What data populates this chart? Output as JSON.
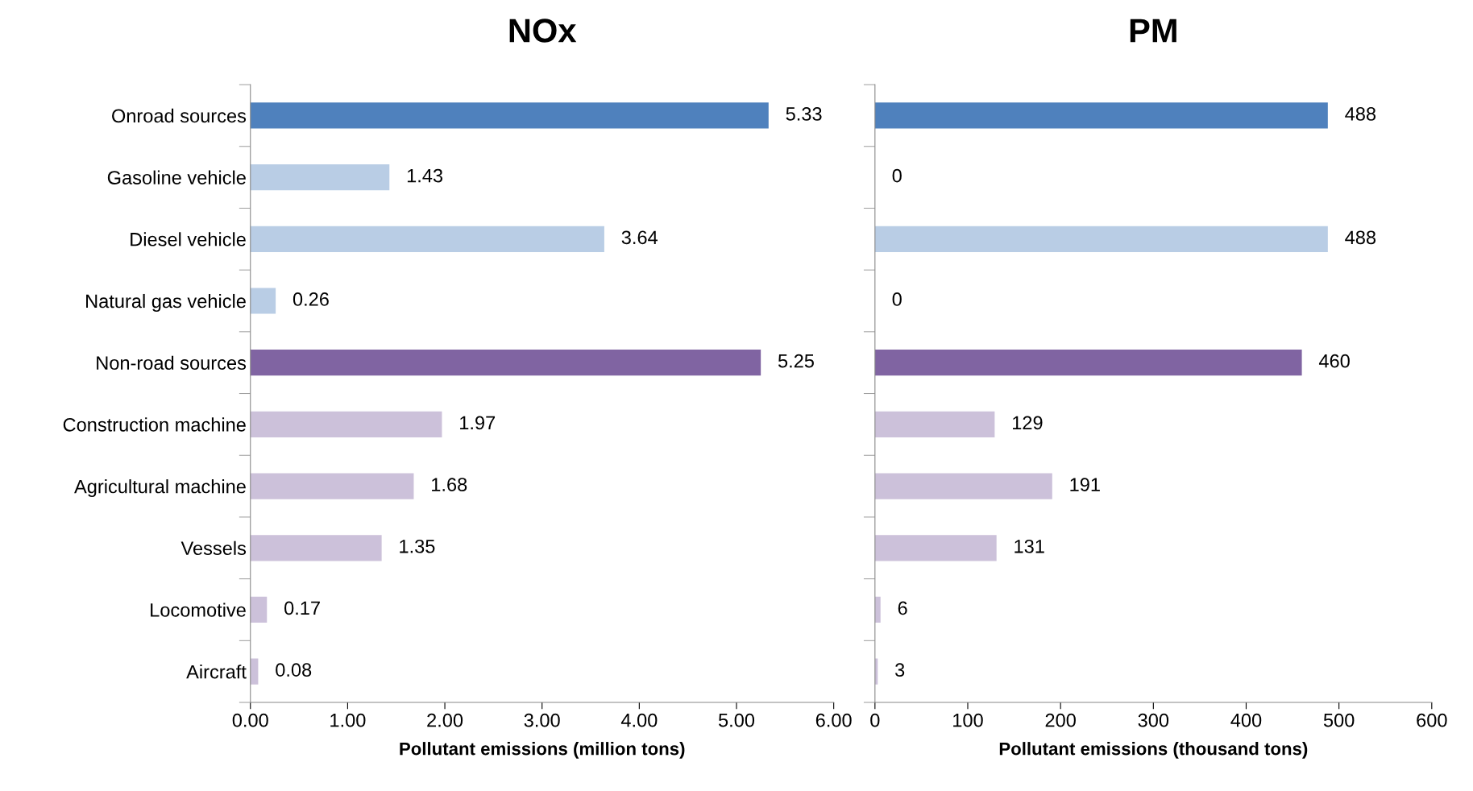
{
  "chart_data": [
    {
      "type": "bar",
      "orientation": "horizontal",
      "title": "NOx",
      "xlabel": "Pollutant emissions (million tons)",
      "categories": [
        "Onroad sources",
        "Gasoline vehicle",
        "Diesel vehicle",
        "Natural gas vehicle",
        "Non-road sources",
        "Construction machine",
        "Agricultural machine",
        "Vessels",
        "Locomotive",
        "Aircraft"
      ],
      "values": [
        5.33,
        1.43,
        3.64,
        0.26,
        5.25,
        1.97,
        1.68,
        1.35,
        0.17,
        0.08
      ],
      "colors": [
        "#4f81bd",
        "#b9cde5",
        "#b9cde5",
        "#b9cde5",
        "#8064a2",
        "#ccc1da",
        "#ccc1da",
        "#ccc1da",
        "#ccc1da",
        "#ccc1da"
      ],
      "xlim": [
        0,
        6
      ],
      "xticks": [
        {
          "value": 0,
          "label": "0.00"
        },
        {
          "value": 1,
          "label": "1.00"
        },
        {
          "value": 2,
          "label": "2.00"
        },
        {
          "value": 3,
          "label": "3.00"
        },
        {
          "value": 4,
          "label": "4.00"
        },
        {
          "value": 5,
          "label": "5.00"
        },
        {
          "value": 6,
          "label": "6.00"
        }
      ],
      "data_labels": true,
      "grid": false,
      "legend": false
    },
    {
      "type": "bar",
      "orientation": "horizontal",
      "title": "PM",
      "xlabel": "Pollutant emissions (thousand tons)",
      "categories": [
        null,
        null,
        null,
        null,
        null,
        null,
        null,
        null,
        null,
        null
      ],
      "values": [
        488,
        0,
        488,
        0,
        460,
        129,
        191,
        131,
        6,
        3
      ],
      "colors": [
        "#4f81bd",
        "#b9cde5",
        "#b9cde5",
        "#b9cde5",
        "#8064a2",
        "#ccc1da",
        "#ccc1da",
        "#ccc1da",
        "#ccc1da",
        "#ccc1da"
      ],
      "xlim": [
        0,
        600
      ],
      "xticks": [
        0,
        100,
        200,
        300,
        400,
        500,
        600
      ],
      "tick_labels": "x",
      "data_labels": true,
      "grid": false,
      "legend": false
    }
  ]
}
